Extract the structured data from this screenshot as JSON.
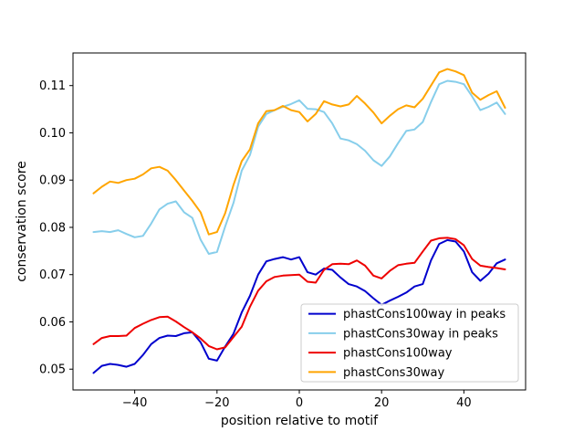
{
  "chart_data": {
    "type": "line",
    "title": "",
    "xlabel": "position relative to motif",
    "ylabel": "conservation score",
    "xlim": [
      -55,
      55
    ],
    "ylim": [
      0.0456,
      0.1169
    ],
    "grid": false,
    "background": "#ffffff",
    "spine_color": "#000000",
    "legend_position": "lower right",
    "legend_border_color": "#cccccc",
    "legend_background": "rgba(255,255,255,0.8)",
    "xticks": [
      {
        "value": -40,
        "label": "−40"
      },
      {
        "value": -20,
        "label": "−20"
      },
      {
        "value": 0,
        "label": "0"
      },
      {
        "value": 20,
        "label": "20"
      },
      {
        "value": 40,
        "label": "40"
      }
    ],
    "yticks": [
      {
        "value": 0.05,
        "label": "0.05"
      },
      {
        "value": 0.06,
        "label": "0.06"
      },
      {
        "value": 0.07,
        "label": "0.07"
      },
      {
        "value": 0.08,
        "label": "0.08"
      },
      {
        "value": 0.09,
        "label": "0.09"
      },
      {
        "value": 0.1,
        "label": "0.10"
      },
      {
        "value": 0.11,
        "label": "0.11"
      }
    ],
    "x": [
      -50,
      -48,
      -46,
      -44,
      -42,
      -40,
      -38,
      -36,
      -34,
      -32,
      -30,
      -28,
      -26,
      -24,
      -22,
      -20,
      -18,
      -16,
      -14,
      -12,
      -10,
      -8,
      -6,
      -4,
      -2,
      0,
      2,
      4,
      6,
      8,
      10,
      12,
      14,
      16,
      18,
      20,
      22,
      24,
      26,
      28,
      30,
      32,
      34,
      36,
      38,
      40,
      42,
      44,
      46,
      48,
      50
    ],
    "series": [
      {
        "name": "phastCons100way in peaks",
        "color": "#0000cd",
        "line_width": 2,
        "values": [
          0.0492,
          0.0507,
          0.0511,
          0.0509,
          0.0505,
          0.0511,
          0.053,
          0.0553,
          0.0566,
          0.0571,
          0.057,
          0.0576,
          0.0578,
          0.0557,
          0.0522,
          0.0518,
          0.0548,
          0.0575,
          0.062,
          0.0655,
          0.07,
          0.0728,
          0.0733,
          0.0737,
          0.0732,
          0.0737,
          0.0705,
          0.07,
          0.0713,
          0.071,
          0.0694,
          0.068,
          0.0675,
          0.0665,
          0.065,
          0.0636,
          0.0645,
          0.0653,
          0.0662,
          0.0675,
          0.068,
          0.073,
          0.0765,
          0.0773,
          0.077,
          0.0749,
          0.0705,
          0.0687,
          0.0702,
          0.0724,
          0.0732
        ]
      },
      {
        "name": "phastCons30way in peaks",
        "color": "#87ceeb",
        "line_width": 2,
        "values": [
          0.079,
          0.0792,
          0.079,
          0.0794,
          0.0786,
          0.0779,
          0.0782,
          0.0808,
          0.0838,
          0.085,
          0.0855,
          0.0832,
          0.082,
          0.0774,
          0.0744,
          0.0748,
          0.0802,
          0.0852,
          0.092,
          0.0953,
          0.1013,
          0.104,
          0.1048,
          0.1055,
          0.1061,
          0.1069,
          0.1051,
          0.105,
          0.1044,
          0.102,
          0.0988,
          0.0984,
          0.0976,
          0.0962,
          0.0942,
          0.093,
          0.095,
          0.0978,
          0.1004,
          0.1007,
          0.1023,
          0.1065,
          0.1103,
          0.111,
          0.1108,
          0.1103,
          0.1077,
          0.1048,
          0.1055,
          0.1064,
          0.104
        ]
      },
      {
        "name": "phastCons100way",
        "color": "#ee0000",
        "line_width": 2,
        "values": [
          0.0553,
          0.0566,
          0.057,
          0.057,
          0.0571,
          0.0587,
          0.0596,
          0.0604,
          0.061,
          0.0611,
          0.0601,
          0.0589,
          0.0578,
          0.0565,
          0.0549,
          0.0542,
          0.0546,
          0.0568,
          0.059,
          0.0632,
          0.0666,
          0.0686,
          0.0695,
          0.0698,
          0.0699,
          0.07,
          0.0685,
          0.0683,
          0.071,
          0.0722,
          0.0723,
          0.0722,
          0.073,
          0.0719,
          0.0698,
          0.0692,
          0.0708,
          0.072,
          0.0723,
          0.0725,
          0.0749,
          0.0772,
          0.0777,
          0.0778,
          0.0775,
          0.0762,
          0.0733,
          0.0719,
          0.0716,
          0.0714,
          0.0711
        ]
      },
      {
        "name": "phastCons30way",
        "color": "#ffa500",
        "line_width": 2,
        "values": [
          0.0872,
          0.0886,
          0.0897,
          0.0894,
          0.09,
          0.0903,
          0.0912,
          0.0925,
          0.0928,
          0.092,
          0.09,
          0.0878,
          0.0856,
          0.0832,
          0.0785,
          0.079,
          0.083,
          0.089,
          0.094,
          0.0965,
          0.102,
          0.1046,
          0.1048,
          0.1057,
          0.1048,
          0.1044,
          0.1024,
          0.104,
          0.1067,
          0.106,
          0.1056,
          0.106,
          0.1078,
          0.1062,
          0.1043,
          0.102,
          0.1036,
          0.105,
          0.1058,
          0.1054,
          0.1072,
          0.11,
          0.1128,
          0.1135,
          0.113,
          0.1122,
          0.1085,
          0.107,
          0.108,
          0.1088,
          0.1053
        ]
      }
    ]
  }
}
